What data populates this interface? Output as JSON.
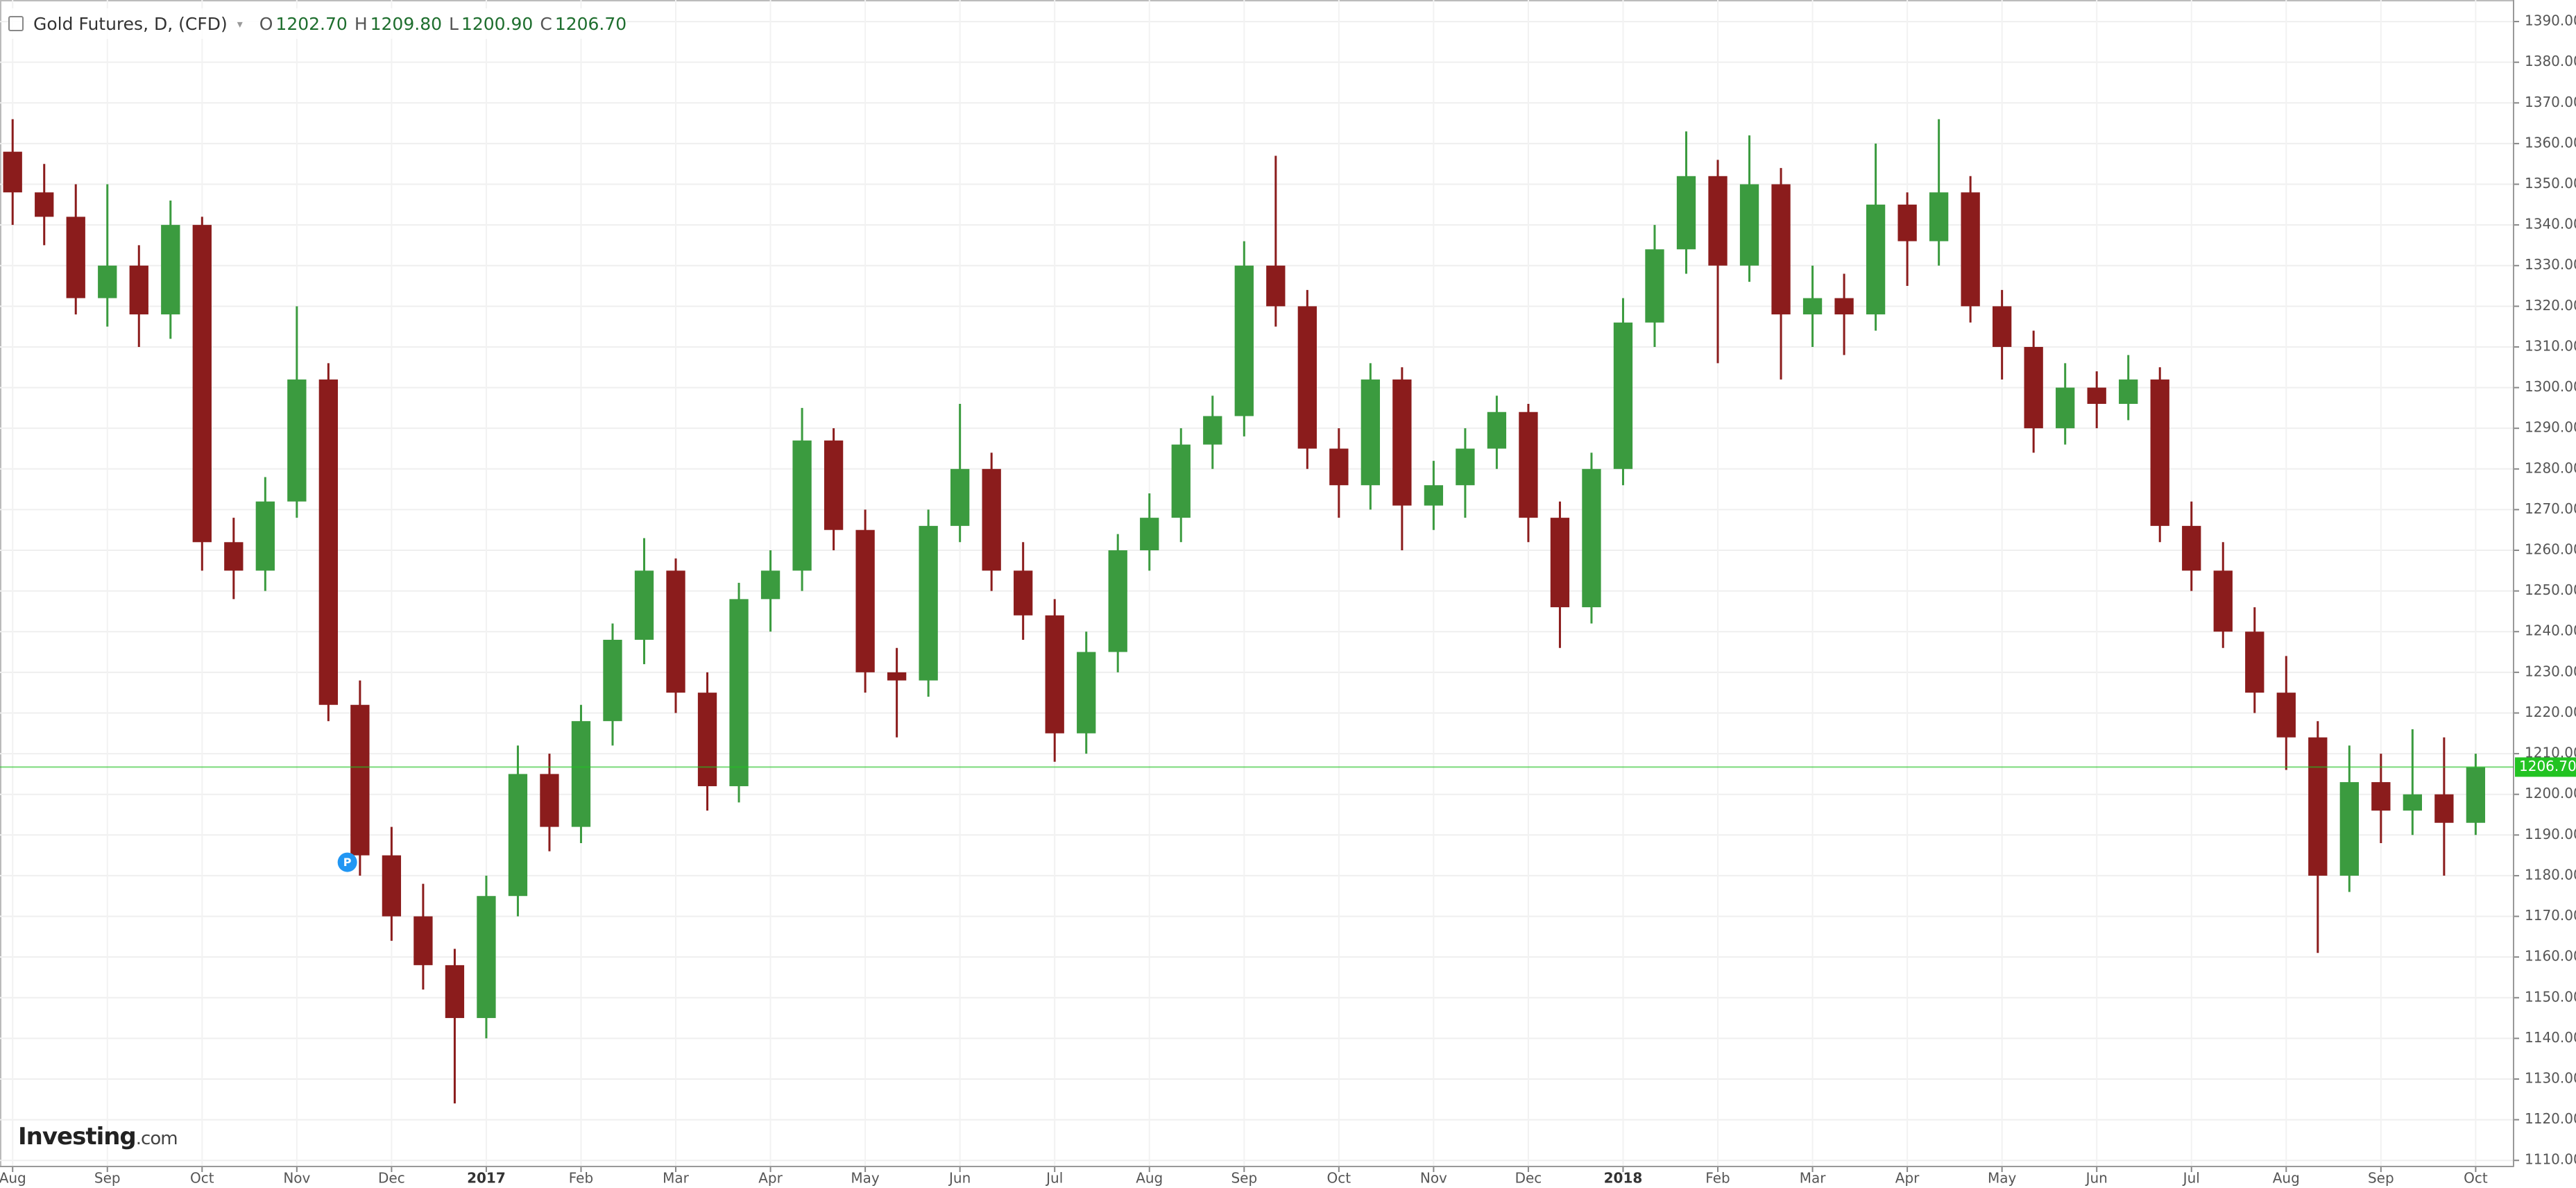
{
  "chart_data": {
    "type": "candlestick",
    "title": "Gold Futures, D, (CFD)",
    "ohlc_header": [
      {
        "key": "O",
        "value": "1202.70"
      },
      {
        "key": "H",
        "value": "1209.80"
      },
      {
        "key": "L",
        "value": "1200.90"
      },
      {
        "key": "C",
        "value": "1206.70"
      }
    ],
    "logo": {
      "brand": "Investing",
      "suffix": ".com"
    },
    "marker": "P",
    "up_color": "#3b9b3f",
    "down_color": "#8b1c1c",
    "grid": true,
    "last_price": {
      "value": 1206.7,
      "label": "1206.70",
      "color": "#22c322"
    },
    "xlim": [
      -0.4,
      79.2
    ],
    "xticks": [
      {
        "value": 0,
        "label": "Aug"
      },
      {
        "value": 3,
        "label": "Sep"
      },
      {
        "value": 6,
        "label": "Oct"
      },
      {
        "value": 9,
        "label": "Nov"
      },
      {
        "value": 12,
        "label": "Dec"
      },
      {
        "value": 15,
        "label": "2017"
      },
      {
        "value": 18,
        "label": "Feb"
      },
      {
        "value": 21,
        "label": "Mar"
      },
      {
        "value": 24,
        "label": "Apr"
      },
      {
        "value": 27,
        "label": "May"
      },
      {
        "value": 30,
        "label": "Jun"
      },
      {
        "value": 33,
        "label": "Jul"
      },
      {
        "value": 36,
        "label": "Aug"
      },
      {
        "value": 39,
        "label": "Sep"
      },
      {
        "value": 42,
        "label": "Oct"
      },
      {
        "value": 45,
        "label": "Nov"
      },
      {
        "value": 48,
        "label": "Dec"
      },
      {
        "value": 51,
        "label": "2018"
      },
      {
        "value": 54,
        "label": "Feb"
      },
      {
        "value": 57,
        "label": "Mar"
      },
      {
        "value": 60,
        "label": "Apr"
      },
      {
        "value": 63,
        "label": "May"
      },
      {
        "value": 66,
        "label": "Jun"
      },
      {
        "value": 69,
        "label": "Jul"
      },
      {
        "value": 72,
        "label": "Aug"
      },
      {
        "value": 75,
        "label": "Sep"
      },
      {
        "value": 78,
        "label": "Oct"
      }
    ],
    "ylim": [
      1108.5,
      1395.3
    ],
    "yticks": [
      {
        "value": 1110,
        "label": "1110.00"
      },
      {
        "value": 1120,
        "label": "1120.00"
      },
      {
        "value": 1130,
        "label": "1130.00"
      },
      {
        "value": 1140,
        "label": "1140.00"
      },
      {
        "value": 1150,
        "label": "1150.00"
      },
      {
        "value": 1160,
        "label": "1160.00"
      },
      {
        "value": 1170,
        "label": "1170.00"
      },
      {
        "value": 1180,
        "label": "1180.00"
      },
      {
        "value": 1190,
        "label": "1190.00"
      },
      {
        "value": 1200,
        "label": "1200.00"
      },
      {
        "value": 1210,
        "label": "1210.00"
      },
      {
        "value": 1220,
        "label": "1220.00"
      },
      {
        "value": 1230,
        "label": "1230.00"
      },
      {
        "value": 1240,
        "label": "1240.00"
      },
      {
        "value": 1250,
        "label": "1250.00"
      },
      {
        "value": 1260,
        "label": "1260.00"
      },
      {
        "value": 1270,
        "label": "1270.00"
      },
      {
        "value": 1280,
        "label": "1280.00"
      },
      {
        "value": 1290,
        "label": "1290.00"
      },
      {
        "value": 1300,
        "label": "1300.00"
      },
      {
        "value": 1310,
        "label": "1310.00"
      },
      {
        "value": 1320,
        "label": "1320.00"
      },
      {
        "value": 1330,
        "label": "1330.00"
      },
      {
        "value": 1340,
        "label": "1340.00"
      },
      {
        "value": 1350,
        "label": "1350.00"
      },
      {
        "value": 1360,
        "label": "1360.00"
      },
      {
        "value": 1370,
        "label": "1370.00"
      },
      {
        "value": 1380,
        "label": "1380.00"
      },
      {
        "value": 1390,
        "label": "1390.00"
      }
    ],
    "x": [
      0,
      1,
      2,
      3,
      4,
      5,
      6,
      7,
      8,
      9,
      10,
      11,
      12,
      13,
      14,
      15,
      16,
      17,
      18,
      19,
      20,
      21,
      22,
      23,
      24,
      25,
      26,
      27,
      28,
      29,
      30,
      31,
      32,
      33,
      34,
      35,
      36,
      37,
      38,
      39,
      40,
      41,
      42,
      43,
      44,
      45,
      46,
      47,
      48,
      49,
      50,
      51,
      52,
      53,
      54,
      55,
      56,
      57,
      58,
      59,
      60,
      61,
      62,
      63,
      64,
      65,
      66,
      67,
      68,
      69,
      70,
      71,
      72,
      73,
      74,
      75,
      76,
      77,
      78
    ],
    "open": [
      1358,
      1348,
      1342,
      1322,
      1330,
      1318,
      1340,
      1262,
      1255,
      1272,
      1302,
      1222,
      1185,
      1170,
      1158,
      1145,
      1175,
      1205,
      1192,
      1218,
      1238,
      1255,
      1225,
      1202,
      1248,
      1255,
      1287,
      1265,
      1230,
      1228,
      1266,
      1280,
      1255,
      1244,
      1215,
      1235,
      1260,
      1268,
      1286,
      1293,
      1330,
      1320,
      1285,
      1276,
      1302,
      1271,
      1276,
      1285,
      1294,
      1268,
      1246,
      1280,
      1316,
      1334,
      1352,
      1330,
      1350,
      1318,
      1322,
      1318,
      1345,
      1336,
      1348,
      1320,
      1310,
      1290,
      1300,
      1296,
      1302,
      1266,
      1255,
      1240,
      1225,
      1214,
      1180,
      1203,
      1196,
      1200,
      1193
    ],
    "high": [
      1366,
      1355,
      1350,
      1350,
      1335,
      1346,
      1342,
      1268,
      1278,
      1320,
      1306,
      1228,
      1192,
      1178,
      1162,
      1180,
      1212,
      1210,
      1222,
      1242,
      1263,
      1258,
      1230,
      1252,
      1260,
      1295,
      1290,
      1270,
      1236,
      1270,
      1296,
      1284,
      1262,
      1248,
      1240,
      1264,
      1274,
      1290,
      1298,
      1336,
      1357,
      1324,
      1290,
      1306,
      1305,
      1282,
      1290,
      1298,
      1296,
      1272,
      1284,
      1322,
      1340,
      1363,
      1356,
      1362,
      1354,
      1330,
      1328,
      1360,
      1348,
      1366,
      1352,
      1324,
      1314,
      1306,
      1304,
      1308,
      1305,
      1272,
      1262,
      1246,
      1234,
      1218,
      1212,
      1210,
      1216,
      1214,
      1210
    ],
    "low": [
      1340,
      1335,
      1318,
      1315,
      1310,
      1312,
      1255,
      1248,
      1250,
      1268,
      1218,
      1180,
      1164,
      1152,
      1124,
      1140,
      1170,
      1186,
      1188,
      1212,
      1232,
      1220,
      1196,
      1198,
      1240,
      1250,
      1260,
      1225,
      1214,
      1224,
      1262,
      1250,
      1238,
      1208,
      1210,
      1230,
      1255,
      1262,
      1280,
      1288,
      1315,
      1280,
      1268,
      1270,
      1260,
      1265,
      1268,
      1280,
      1262,
      1236,
      1242,
      1276,
      1310,
      1328,
      1306,
      1326,
      1302,
      1310,
      1308,
      1314,
      1325,
      1330,
      1316,
      1302,
      1284,
      1286,
      1290,
      1292,
      1262,
      1250,
      1236,
      1220,
      1206,
      1161,
      1176,
      1188,
      1190,
      1180,
      1190
    ],
    "close": [
      1348,
      1342,
      1322,
      1330,
      1318,
      1340,
      1262,
      1255,
      1272,
      1302,
      1222,
      1185,
      1170,
      1158,
      1145,
      1175,
      1205,
      1192,
      1218,
      1238,
      1255,
      1225,
      1202,
      1248,
      1255,
      1287,
      1265,
      1230,
      1228,
      1266,
      1280,
      1255,
      1244,
      1215,
      1235,
      1260,
      1268,
      1286,
      1293,
      1330,
      1320,
      1285,
      1276,
      1302,
      1271,
      1276,
      1285,
      1294,
      1268,
      1246,
      1280,
      1316,
      1334,
      1352,
      1330,
      1350,
      1318,
      1322,
      1318,
      1345,
      1336,
      1348,
      1320,
      1310,
      1290,
      1300,
      1296,
      1302,
      1266,
      1255,
      1240,
      1225,
      1214,
      1180,
      1203,
      1196,
      1200,
      1193,
      1206.7
    ]
  }
}
